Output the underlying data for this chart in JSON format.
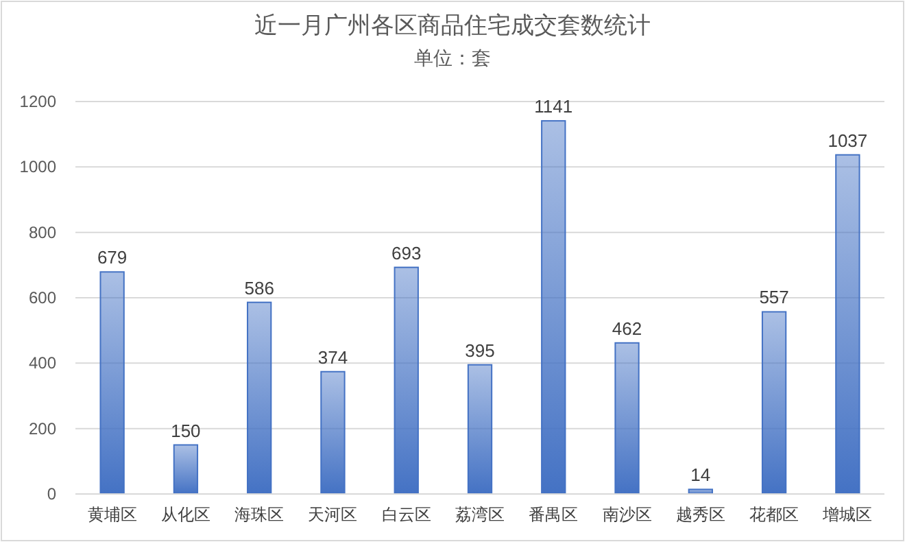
{
  "chart_data": {
    "type": "bar",
    "title": "近一月广州各区商品住宅成交套数统计",
    "subtitle": "单位：套",
    "categories": [
      "黄埔区",
      "从化区",
      "海珠区",
      "天河区",
      "白云区",
      "荔湾区",
      "番禺区",
      "南沙区",
      "越秀区",
      "花都区",
      "增城区"
    ],
    "values": [
      679,
      150,
      586,
      374,
      693,
      395,
      1141,
      462,
      14,
      557,
      1037
    ],
    "color": "#4472c4",
    "ylim": [
      0,
      1200
    ],
    "yticks": [
      0,
      200,
      400,
      600,
      800,
      1000,
      1200
    ],
    "grid": "y",
    "data_labels": true
  }
}
